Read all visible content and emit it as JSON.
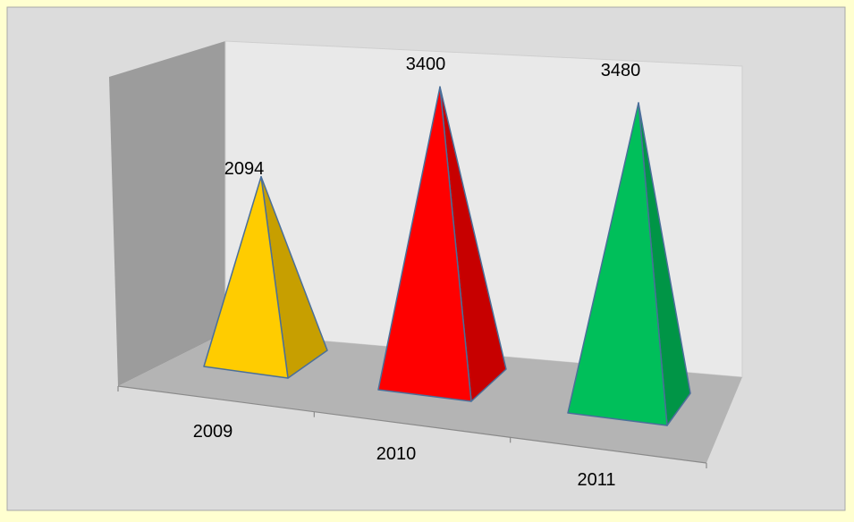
{
  "chart_data": {
    "type": "bar",
    "style": "3d-pyramid",
    "title": "",
    "xlabel": "",
    "ylabel": "",
    "categories": [
      "2009",
      "2010",
      "2011"
    ],
    "values": [
      2094,
      3400,
      3480
    ],
    "data_labels": [
      "2094",
      "3400",
      "3480"
    ],
    "ylim": [
      0,
      3500
    ],
    "legend": "none",
    "grid": false,
    "colors": [
      "#ffcc00",
      "#ff0000",
      "#00bf5a"
    ]
  },
  "colors": {
    "page_background": "#ffffd0",
    "plot_area": "#dcdcdc",
    "back_wall": "#e9e9e9",
    "side_wall": "#9c9c9c",
    "floor": "#b4b4b4",
    "pyramid_outline": "#4a6f9a"
  }
}
